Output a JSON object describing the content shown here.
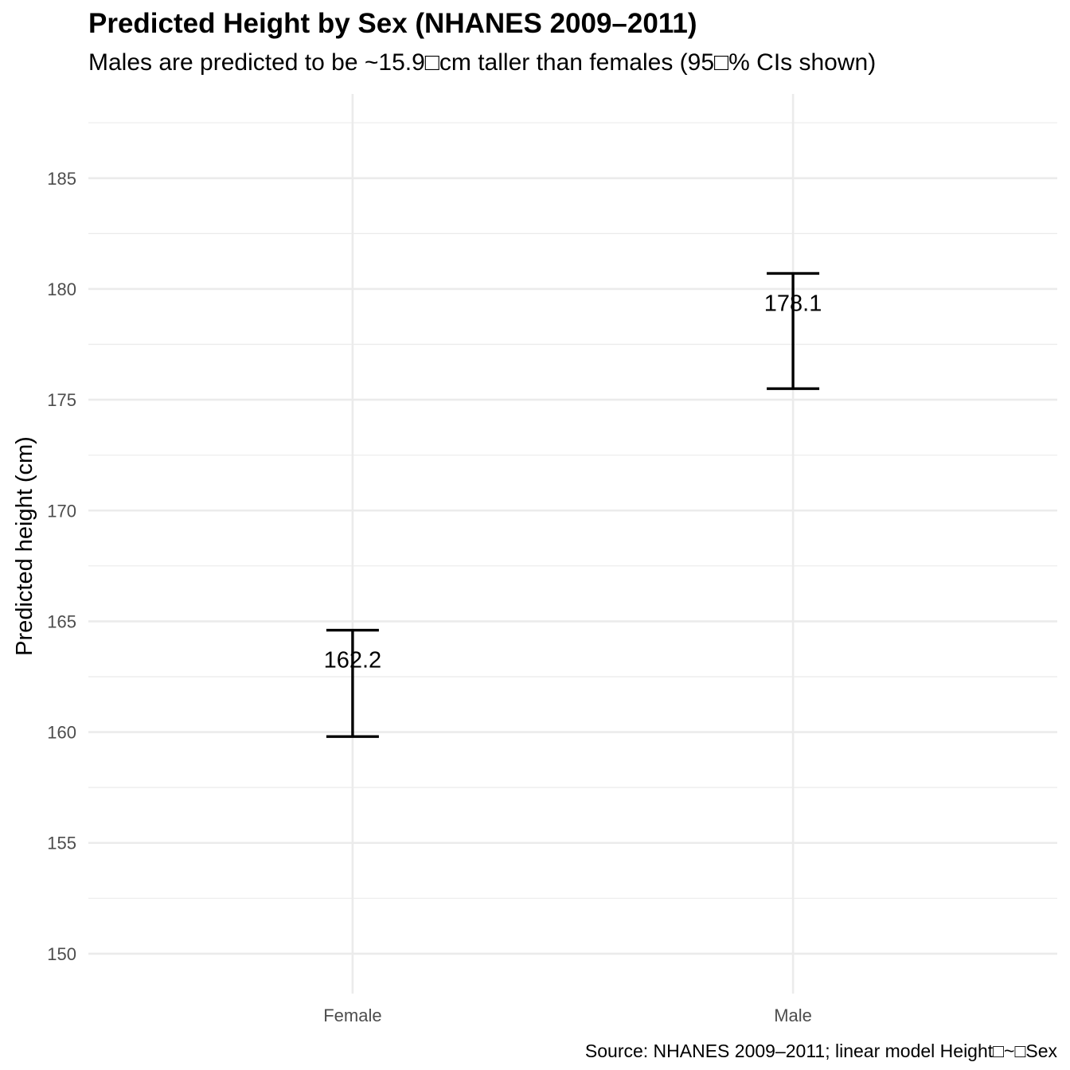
{
  "chart_data": {
    "type": "errorbar",
    "title": "Predicted Height by Sex (NHANES 2009–2011)",
    "subtitle": "Males are predicted to be ~15.9□cm taller than females (95□% CIs shown)",
    "caption": "Source: NHANES 2009–2011; linear model Height□~□Sex",
    "xlabel": "",
    "ylabel": "Predicted height (cm)",
    "categories": [
      "Female",
      "Male"
    ],
    "estimates": [
      162.2,
      178.1
    ],
    "estimate_labels": [
      "162.2",
      "178.1"
    ],
    "lower": [
      159.8,
      175.5
    ],
    "upper": [
      164.6,
      180.7
    ],
    "ylim": [
      148.2,
      188.8
    ],
    "yticks": [
      150,
      155,
      160,
      165,
      170,
      175,
      180,
      185
    ],
    "grid": true,
    "legend": "none",
    "colors": {
      "errorbar": "#000000",
      "grid": "#ebebeb",
      "tick_text": "#4d4d4d",
      "background": "#ffffff"
    }
  }
}
